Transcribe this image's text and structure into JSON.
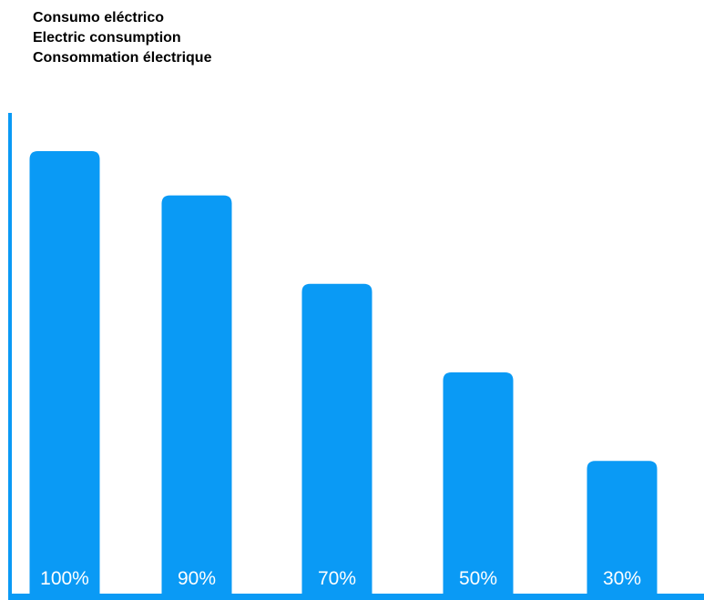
{
  "chart_data": {
    "type": "bar",
    "title_lines": [
      "Consumo eléctrico",
      "Electric consumption",
      "Consommation électrique"
    ],
    "categories": [
      "100%",
      "90%",
      "70%",
      "50%",
      "30%"
    ],
    "values": [
      100,
      90,
      70,
      50,
      30
    ],
    "ylim": [
      0,
      100
    ],
    "grid": false,
    "bar_color": "#0a9af5",
    "label_color": "#ffffff"
  }
}
